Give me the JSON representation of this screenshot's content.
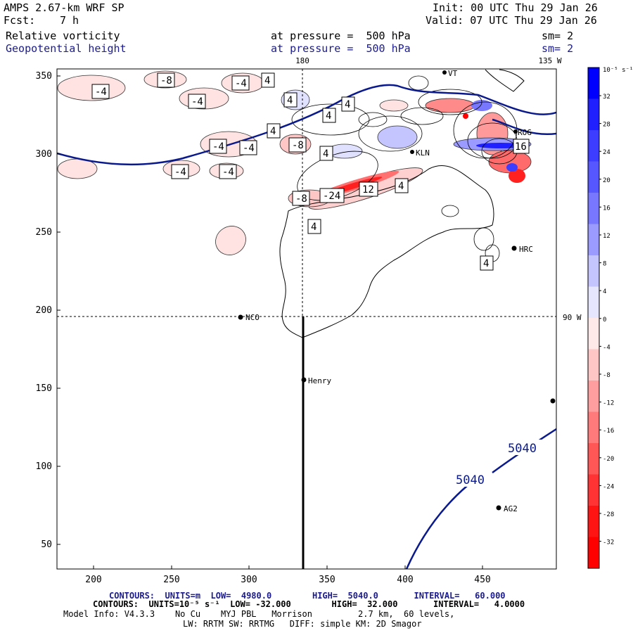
{
  "header": {
    "model": "AMPS 2.67-km WRF SP",
    "init": "Init: 00 UTC Thu 29 Jan 26",
    "fcst_label": "Fcst:",
    "fcst_value": "7 h",
    "valid": "Valid: 07 UTC Thu 29 Jan 26",
    "field1": "Relative vorticity",
    "field1_level": "at pressure =  500 hPa",
    "field1_sm": "sm= 2",
    "field2": "Geopotential height",
    "field2_level": "at pressure =  500 hPa",
    "field2_sm": "sm= 2"
  },
  "map": {
    "x_ticks": [
      "200",
      "250",
      "300",
      "350",
      "400",
      "450"
    ],
    "y_ticks": [
      "350",
      "300",
      "250",
      "200",
      "150",
      "100",
      "50"
    ],
    "meridian_180": "180",
    "meridian_135w": "135 W",
    "parallel_90w": "90 W",
    "stations": [
      {
        "name": "NCO"
      },
      {
        "name": "Henry"
      },
      {
        "name": "HRC"
      },
      {
        "name": "AG2"
      },
      {
        "name": "KLN"
      },
      {
        "name": "ROG"
      },
      {
        "name": "VT"
      }
    ],
    "height_labels": [
      "5040",
      "5040"
    ],
    "vort_labels": [
      "-4",
      "-8",
      "-4",
      "4",
      "-4",
      "4",
      "4",
      "4",
      "-4",
      "-4",
      "-8",
      "4",
      "-4",
      "-4",
      "-8",
      "-24",
      "12",
      "4",
      "4",
      "4",
      "16",
      "4"
    ]
  },
  "colorbar": {
    "units": "10⁻⁵ s⁻¹",
    "labels": [
      "32",
      "28",
      "24",
      "20",
      "16",
      "12",
      "8",
      "4",
      "0",
      "-4",
      "-8",
      "-12",
      "-16",
      "-20",
      "-24",
      "-28",
      "-32"
    ],
    "colors": [
      "#0000ff",
      "#2020ff",
      "#3d3dff",
      "#5757ff",
      "#7777ff",
      "#9a9aff",
      "#c4c4ff",
      "#e6e6ff",
      "#ffe8e8",
      "#ffc6c6",
      "#ff9e9e",
      "#ff7a7a",
      "#ff5656",
      "#ff3333",
      "#ff1414",
      "#ff0000"
    ]
  },
  "footer": {
    "line1": "CONTOURS:  UNITS=m  LOW=  4980.0        HIGH=  5040.0       INTERVAL=   60.000",
    "line2": "CONTOURS:  UNITS=10⁻⁵ s⁻¹  LOW= -32.000        HIGH=  32.000       INTERVAL=   4.0000",
    "line3": "Model Info: V4.3.3    No Cu    MYJ PBL   Morrison         2.7 km,  60 levels,",
    "line4": "LW: RRTM SW: RRTMG   DIFF: simple KM: 2D Smagor"
  }
}
